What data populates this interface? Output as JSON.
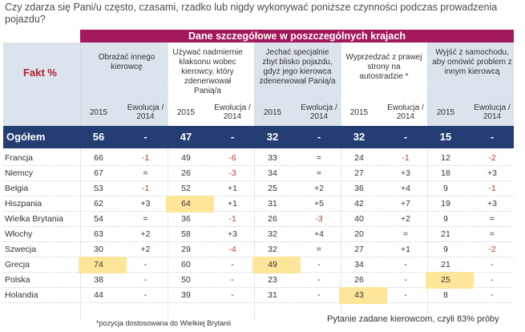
{
  "question": "Czy zdarza się Pani/u często, czasami, rzadko lub nigdy wykonywać poniższe czynności podczas prowadzenia pojazdu?",
  "banner": "Dane szczegółowe w poszczególnych krajach",
  "fakt_label": "Fakt %",
  "columns": [
    {
      "header": "Obrażać innego kierowcę",
      "year": "2015",
      "evo": "Ewolucja / 2014"
    },
    {
      "header": "Używać nadmiernie klaksonu wobec kierowcy, który zdenerwował Panią/a",
      "year": "2015",
      "evo": "Ewolucja / 2014"
    },
    {
      "header": "Jechać specjalnie zbyt blisko pojazdu, gdyż jego kierowca zdenerwował Panią/a",
      "year": "2015",
      "evo": "Ewolucja / 2014"
    },
    {
      "header": "Wyprzedzać z prawej strony na autostradzie *",
      "year": "2015",
      "evo": "Ewolucja / 2014"
    },
    {
      "header": "Wyjść z samochodu, aby omówić problem z innym kierowcą",
      "year": "2015",
      "evo": "Ewolucja / 2014"
    }
  ],
  "total": {
    "label": "Ogółem",
    "values": [
      "56",
      "-",
      "47",
      "-",
      "32",
      "-",
      "32",
      "-",
      "15",
      "-"
    ]
  },
  "rows": [
    {
      "country": "Francja",
      "values": [
        "66",
        "-1",
        "49",
        "-6",
        "33",
        "=",
        "24",
        "-1",
        "12",
        "-2"
      ]
    },
    {
      "country": "Niemcy",
      "values": [
        "67",
        "=",
        "26",
        "-3",
        "34",
        "=",
        "27",
        "+3",
        "18",
        "+3"
      ]
    },
    {
      "country": "Belgia",
      "values": [
        "53",
        "-1",
        "52",
        "+1",
        "25",
        "+2",
        "36",
        "+4",
        "9",
        "-1"
      ]
    },
    {
      "country": "Hiszpania",
      "values": [
        "62",
        "+3",
        "64",
        "+1",
        "31",
        "+5",
        "42",
        "+7",
        "19",
        "+3"
      ]
    },
    {
      "country": "Wielka Brytania",
      "values": [
        "54",
        "=",
        "36",
        "-1",
        "26",
        "-3",
        "40",
        "+2",
        "9",
        "="
      ]
    },
    {
      "country": "Włochy",
      "values": [
        "63",
        "+2",
        "58",
        "+3",
        "32",
        "+4",
        "20",
        "=",
        "21",
        "="
      ]
    },
    {
      "country": "Szwecja",
      "values": [
        "30",
        "+2",
        "29",
        "-4",
        "32",
        "=",
        "27",
        "+1",
        "9",
        "-2"
      ]
    },
    {
      "country": "Grecja",
      "values": [
        "74",
        "-",
        "60",
        "-",
        "49",
        "-",
        "34",
        "-",
        "21",
        "-"
      ]
    },
    {
      "country": "Polska",
      "values": [
        "38",
        "-",
        "50",
        "-",
        "23",
        "-",
        "26",
        "-",
        "25",
        "-"
      ]
    },
    {
      "country": "Holandia",
      "values": [
        "44",
        "-",
        "39",
        "-",
        "31",
        "-",
        "43",
        "-",
        "8",
        "-"
      ]
    }
  ],
  "footnote": "*pozycja dostosowana do Wielkiej Brytanii",
  "source_note": "Pytanie zadane kierowcom, czyli 83% próby",
  "colors": {
    "banner": "#a3195b",
    "total_bg": "#243d73",
    "negative": "#c0392b",
    "highlight": "#fde69a",
    "band": "#dbe3ec"
  }
}
